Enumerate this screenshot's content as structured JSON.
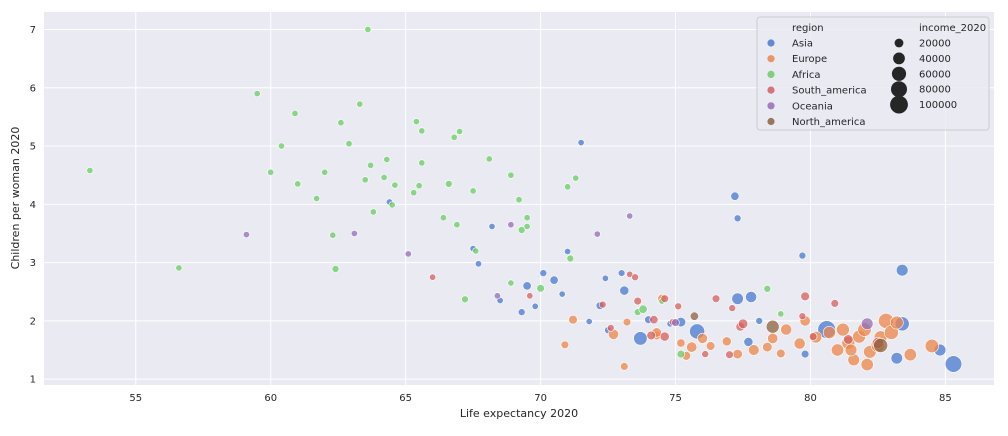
{
  "chart_data": {
    "type": "scatter",
    "title": "",
    "xlabel": "Life expectancy 2020",
    "ylabel": "Children per woman 2020",
    "xlim": [
      51.6,
      86.8
    ],
    "ylim": [
      0.9,
      7.3
    ],
    "xticks": [
      55,
      60,
      65,
      70,
      75,
      80,
      85
    ],
    "yticks": [
      1,
      2,
      3,
      4,
      5,
      6,
      7
    ],
    "grid": true,
    "legend_position": "top-right",
    "hue_title": "region",
    "size_title": "income_2020",
    "size_legend": [
      20000,
      40000,
      60000,
      80000,
      100000
    ],
    "size_range": [
      10000,
      120000
    ],
    "colors": {
      "Asia": "#4878d0",
      "Europe": "#ee854a",
      "Africa": "#6acc64",
      "South_america": "#d65f5f",
      "Oceania": "#956cb4",
      "North_america": "#8c613c"
    },
    "series": [
      {
        "name": "Asia",
        "points": [
          [
            64.4,
            4.04,
            6000
          ],
          [
            67.5,
            3.24,
            6000
          ],
          [
            67.7,
            2.98,
            5000
          ],
          [
            68.2,
            3.62,
            5000
          ],
          [
            71.5,
            5.06,
            8000
          ],
          [
            77.2,
            4.14,
            18000
          ],
          [
            77.3,
            3.76,
            12000
          ],
          [
            79.7,
            3.12,
            12000
          ],
          [
            83.4,
            2.87,
            40000
          ],
          [
            68.5,
            2.35,
            9000
          ],
          [
            69.3,
            2.15,
            12000
          ],
          [
            69.5,
            2.6,
            18000
          ],
          [
            69.8,
            2.25,
            9000
          ],
          [
            70.1,
            2.82,
            12000
          ],
          [
            70.5,
            2.7,
            18000
          ],
          [
            70.8,
            2.46,
            8000
          ],
          [
            71.0,
            3.19,
            10000
          ],
          [
            72.2,
            2.26,
            15000
          ],
          [
            72.4,
            2.73,
            10000
          ],
          [
            72.5,
            1.84,
            12000
          ],
          [
            73.0,
            2.82,
            11000
          ],
          [
            73.1,
            2.52,
            22000
          ],
          [
            73.7,
            1.7,
            55000
          ],
          [
            74.0,
            2.02,
            15000
          ],
          [
            75.2,
            1.98,
            25000
          ],
          [
            75.8,
            1.82,
            70000
          ],
          [
            77.3,
            2.38,
            38000
          ],
          [
            77.8,
            2.41,
            35000
          ],
          [
            77.7,
            1.64,
            22000
          ],
          [
            79.8,
            1.43,
            15000
          ],
          [
            80.6,
            1.85,
            100000
          ],
          [
            83.4,
            1.95,
            60000
          ],
          [
            85.3,
            1.26,
            85000
          ],
          [
            84.8,
            1.5,
            40000
          ],
          [
            83.2,
            1.36,
            38000
          ],
          [
            74.8,
            1.95,
            10000
          ],
          [
            78.1,
            2.0,
            12000
          ],
          [
            71.8,
            1.99,
            8000
          ]
        ]
      },
      {
        "name": "Europe",
        "points": [
          [
            71.2,
            2.02,
            20000
          ],
          [
            72.7,
            1.77,
            30000
          ],
          [
            73.2,
            1.98,
            15000
          ],
          [
            74.3,
            1.75,
            20000
          ],
          [
            74.5,
            2.38,
            20000
          ],
          [
            75.2,
            1.62,
            18000
          ],
          [
            75.6,
            1.55,
            30000
          ],
          [
            76.0,
            1.7,
            28000
          ],
          [
            76.3,
            1.57,
            20000
          ],
          [
            76.9,
            1.65,
            22000
          ],
          [
            77.3,
            1.43,
            25000
          ],
          [
            77.9,
            1.5,
            32000
          ],
          [
            78.4,
            1.55,
            25000
          ],
          [
            78.6,
            1.7,
            30000
          ],
          [
            78.9,
            1.44,
            20000
          ],
          [
            79.1,
            1.85,
            35000
          ],
          [
            79.6,
            1.61,
            35000
          ],
          [
            79.8,
            2.0,
            30000
          ],
          [
            80.2,
            1.72,
            40000
          ],
          [
            80.7,
            1.8,
            45000
          ],
          [
            81.0,
            1.5,
            45000
          ],
          [
            81.2,
            1.85,
            50000
          ],
          [
            81.4,
            1.62,
            50000
          ],
          [
            81.6,
            1.33,
            40000
          ],
          [
            81.8,
            1.73,
            50000
          ],
          [
            82.0,
            1.85,
            55000
          ],
          [
            82.1,
            1.25,
            45000
          ],
          [
            82.2,
            1.47,
            48000
          ],
          [
            82.5,
            1.58,
            55000
          ],
          [
            82.6,
            1.72,
            50000
          ],
          [
            82.8,
            2.0,
            70000
          ],
          [
            83.0,
            1.8,
            60000
          ],
          [
            83.2,
            1.97,
            50000
          ],
          [
            83.7,
            1.42,
            45000
          ],
          [
            84.5,
            1.57,
            55000
          ],
          [
            73.1,
            1.22,
            15000
          ],
          [
            70.9,
            1.59,
            15000
          ],
          [
            74.3,
            1.8,
            25000
          ],
          [
            75.4,
            1.4,
            20000
          ],
          [
            81.5,
            1.5,
            40000
          ]
        ]
      },
      {
        "name": "Africa",
        "points": [
          [
            53.3,
            4.58,
            3000
          ],
          [
            56.6,
            2.91,
            5000
          ],
          [
            59.5,
            5.9,
            3000
          ],
          [
            60.0,
            4.55,
            3000
          ],
          [
            60.4,
            5.0,
            3000
          ],
          [
            60.9,
            5.56,
            3000
          ],
          [
            61.0,
            4.35,
            3000
          ],
          [
            61.7,
            4.1,
            3000
          ],
          [
            62.0,
            4.55,
            3000
          ],
          [
            62.3,
            3.47,
            3000
          ],
          [
            62.4,
            2.89,
            12000
          ],
          [
            62.6,
            5.4,
            3000
          ],
          [
            62.9,
            5.04,
            3000
          ],
          [
            63.3,
            5.72,
            5000
          ],
          [
            63.5,
            4.42,
            4000
          ],
          [
            63.6,
            7.0,
            3000
          ],
          [
            63.7,
            4.67,
            5000
          ],
          [
            63.8,
            3.87,
            3000
          ],
          [
            64.2,
            4.46,
            5000
          ],
          [
            64.3,
            4.77,
            3000
          ],
          [
            64.5,
            3.99,
            5000
          ],
          [
            64.6,
            4.33,
            3000
          ],
          [
            65.3,
            4.2,
            5000
          ],
          [
            65.4,
            5.42,
            5000
          ],
          [
            65.5,
            4.32,
            3000
          ],
          [
            65.6,
            5.26,
            5000
          ],
          [
            65.6,
            4.71,
            3000
          ],
          [
            66.4,
            3.77,
            5000
          ],
          [
            66.6,
            4.35,
            12000
          ],
          [
            66.8,
            5.15,
            3000
          ],
          [
            66.9,
            3.65,
            5000
          ],
          [
            67.0,
            5.25,
            3000
          ],
          [
            67.2,
            2.37,
            12000
          ],
          [
            67.5,
            4.23,
            5000
          ],
          [
            67.6,
            3.2,
            10000
          ],
          [
            68.1,
            4.78,
            5000
          ],
          [
            68.9,
            4.5,
            5000
          ],
          [
            69.2,
            4.08,
            5000
          ],
          [
            69.3,
            3.56,
            12000
          ],
          [
            69.5,
            3.62,
            8000
          ],
          [
            69.5,
            3.77,
            5000
          ],
          [
            70.0,
            2.56,
            15000
          ],
          [
            71.0,
            4.3,
            5000
          ],
          [
            71.1,
            3.07,
            12000
          ],
          [
            71.3,
            4.45,
            5000
          ],
          [
            73.6,
            2.15,
            12000
          ],
          [
            73.8,
            2.2,
            18000
          ],
          [
            74.5,
            2.34,
            10000
          ],
          [
            75.2,
            1.43,
            15000
          ],
          [
            78.4,
            2.55,
            12000
          ],
          [
            78.9,
            2.12,
            10000
          ],
          [
            68.9,
            2.65,
            8000
          ]
        ]
      },
      {
        "name": "South_america",
        "points": [
          [
            66.0,
            2.75,
            5000
          ],
          [
            69.6,
            2.43,
            8000
          ],
          [
            72.3,
            2.28,
            12000
          ],
          [
            72.6,
            1.88,
            12000
          ],
          [
            73.3,
            2.8,
            8000
          ],
          [
            73.5,
            2.75,
            12000
          ],
          [
            73.6,
            2.34,
            15000
          ],
          [
            74.1,
            1.75,
            20000
          ],
          [
            74.2,
            2.02,
            18000
          ],
          [
            74.6,
            2.38,
            15000
          ],
          [
            74.6,
            1.73,
            22000
          ],
          [
            74.9,
            1.98,
            12000
          ],
          [
            75.1,
            2.25,
            12000
          ],
          [
            76.1,
            1.43,
            12000
          ],
          [
            76.5,
            2.38,
            15000
          ],
          [
            77.1,
            2.22,
            12000
          ],
          [
            77.4,
            1.9,
            20000
          ],
          [
            77.5,
            1.95,
            25000
          ],
          [
            77.0,
            1.42,
            15000
          ],
          [
            79.8,
            2.42,
            20000
          ],
          [
            79.7,
            2.08,
            12000
          ],
          [
            80.1,
            1.73,
            15000
          ],
          [
            80.9,
            2.3,
            15000
          ],
          [
            81.4,
            1.68,
            25000
          ],
          [
            82.5,
            1.62,
            35000
          ]
        ]
      },
      {
        "name": "Oceania",
        "points": [
          [
            59.1,
            3.48,
            5000
          ],
          [
            63.1,
            3.5,
            4000
          ],
          [
            65.1,
            3.15,
            5000
          ],
          [
            68.4,
            2.43,
            8000
          ],
          [
            68.9,
            3.65,
            5000
          ],
          [
            72.1,
            3.49,
            8000
          ],
          [
            73.3,
            3.8,
            8000
          ],
          [
            75.0,
            1.97,
            15000
          ],
          [
            82.1,
            1.95,
            40000
          ]
        ]
      },
      {
        "name": "North_america",
        "points": [
          [
            75.7,
            2.08,
            18000
          ],
          [
            78.6,
            1.9,
            50000
          ],
          [
            82.6,
            1.58,
            60000
          ]
        ]
      }
    ]
  }
}
